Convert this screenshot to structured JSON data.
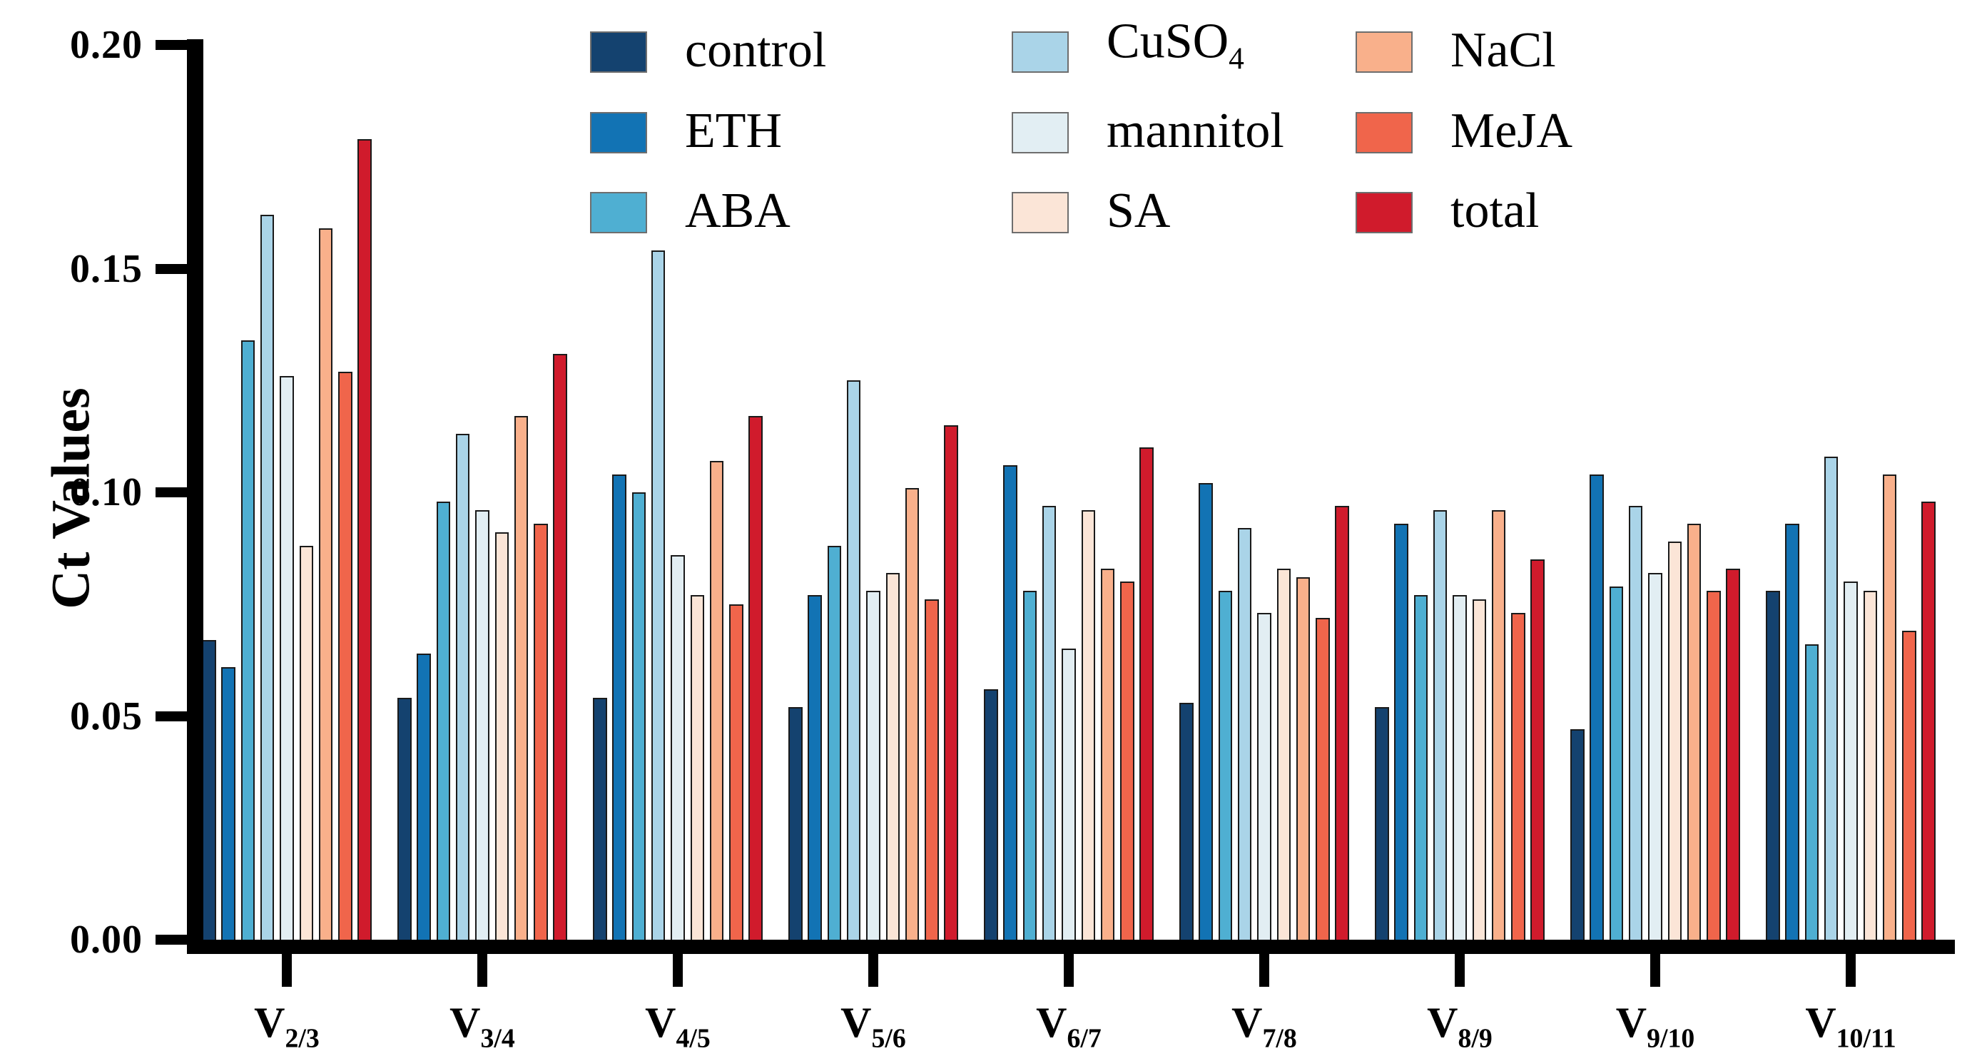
{
  "figure": {
    "background": "#ffffff"
  },
  "chart_data": {
    "type": "bar",
    "title": "",
    "xlabel": "",
    "ylabel": "Ct Values",
    "ylim": [
      0,
      0.2
    ],
    "grid": false,
    "legend_position": "top-center-three-columns",
    "yticks": [
      {
        "label": "0.00",
        "value": 0.0
      },
      {
        "label": "0.05",
        "value": 0.05
      },
      {
        "label": "0.10",
        "value": 0.1
      },
      {
        "label": "0.15",
        "value": 0.15
      },
      {
        "label": "0.20",
        "value": 0.2
      }
    ],
    "categories": [
      "V2/3",
      "V3/4",
      "V4/5",
      "V5/6",
      "V6/7",
      "V7/8",
      "V8/9",
      "V9/10",
      "V10/11"
    ],
    "category_display": [
      {
        "base": "V",
        "sub": "2/3"
      },
      {
        "base": "V",
        "sub": "3/4"
      },
      {
        "base": "V",
        "sub": "4/5"
      },
      {
        "base": "V",
        "sub": "5/6"
      },
      {
        "base": "V",
        "sub": "6/7"
      },
      {
        "base": "V",
        "sub": "7/8"
      },
      {
        "base": "V",
        "sub": "8/9"
      },
      {
        "base": "V",
        "sub": "9/10"
      },
      {
        "base": "V",
        "sub": "10/11"
      }
    ],
    "series": [
      {
        "name": "control",
        "label_main": "control",
        "label_sub": "",
        "color": "#14426f",
        "values": [
          0.067,
          0.054,
          0.054,
          0.052,
          0.056,
          0.053,
          0.052,
          0.047,
          0.078
        ]
      },
      {
        "name": "ETH",
        "label_main": "ETH",
        "label_sub": "",
        "color": "#1273b4",
        "values": [
          0.061,
          0.064,
          0.104,
          0.077,
          0.106,
          0.102,
          0.093,
          0.104,
          0.093
        ]
      },
      {
        "name": "ABA",
        "label_main": "ABA",
        "label_sub": "",
        "color": "#4fafd2",
        "values": [
          0.134,
          0.098,
          0.1,
          0.088,
          0.078,
          0.078,
          0.077,
          0.079,
          0.066
        ]
      },
      {
        "name": "CuSO4",
        "label_main": "CuSO",
        "label_sub": "4",
        "color": "#aad4e8",
        "values": [
          0.162,
          0.113,
          0.154,
          0.125,
          0.097,
          0.092,
          0.096,
          0.097,
          0.108
        ]
      },
      {
        "name": "mannitol",
        "label_main": "mannitol",
        "label_sub": "",
        "color": "#e2eef3",
        "values": [
          0.126,
          0.096,
          0.086,
          0.078,
          0.065,
          0.073,
          0.077,
          0.082,
          0.08
        ]
      },
      {
        "name": "SA",
        "label_main": "SA",
        "label_sub": "",
        "color": "#fbe5d7",
        "values": [
          0.088,
          0.091,
          0.077,
          0.082,
          0.096,
          0.083,
          0.076,
          0.089,
          0.078
        ]
      },
      {
        "name": "NaCl",
        "label_main": "NaCl",
        "label_sub": "",
        "color": "#f9b08b",
        "values": [
          0.159,
          0.117,
          0.107,
          0.101,
          0.083,
          0.081,
          0.096,
          0.093,
          0.104
        ]
      },
      {
        "name": "MeJA",
        "label_main": "MeJA",
        "label_sub": "",
        "color": "#f0654b",
        "values": [
          0.127,
          0.093,
          0.075,
          0.076,
          0.08,
          0.072,
          0.073,
          0.078,
          0.069
        ]
      },
      {
        "name": "total",
        "label_main": "total",
        "label_sub": "",
        "color": "#d01b2c",
        "values": [
          0.179,
          0.131,
          0.117,
          0.115,
          0.11,
          0.097,
          0.085,
          0.083,
          0.098
        ]
      }
    ]
  }
}
